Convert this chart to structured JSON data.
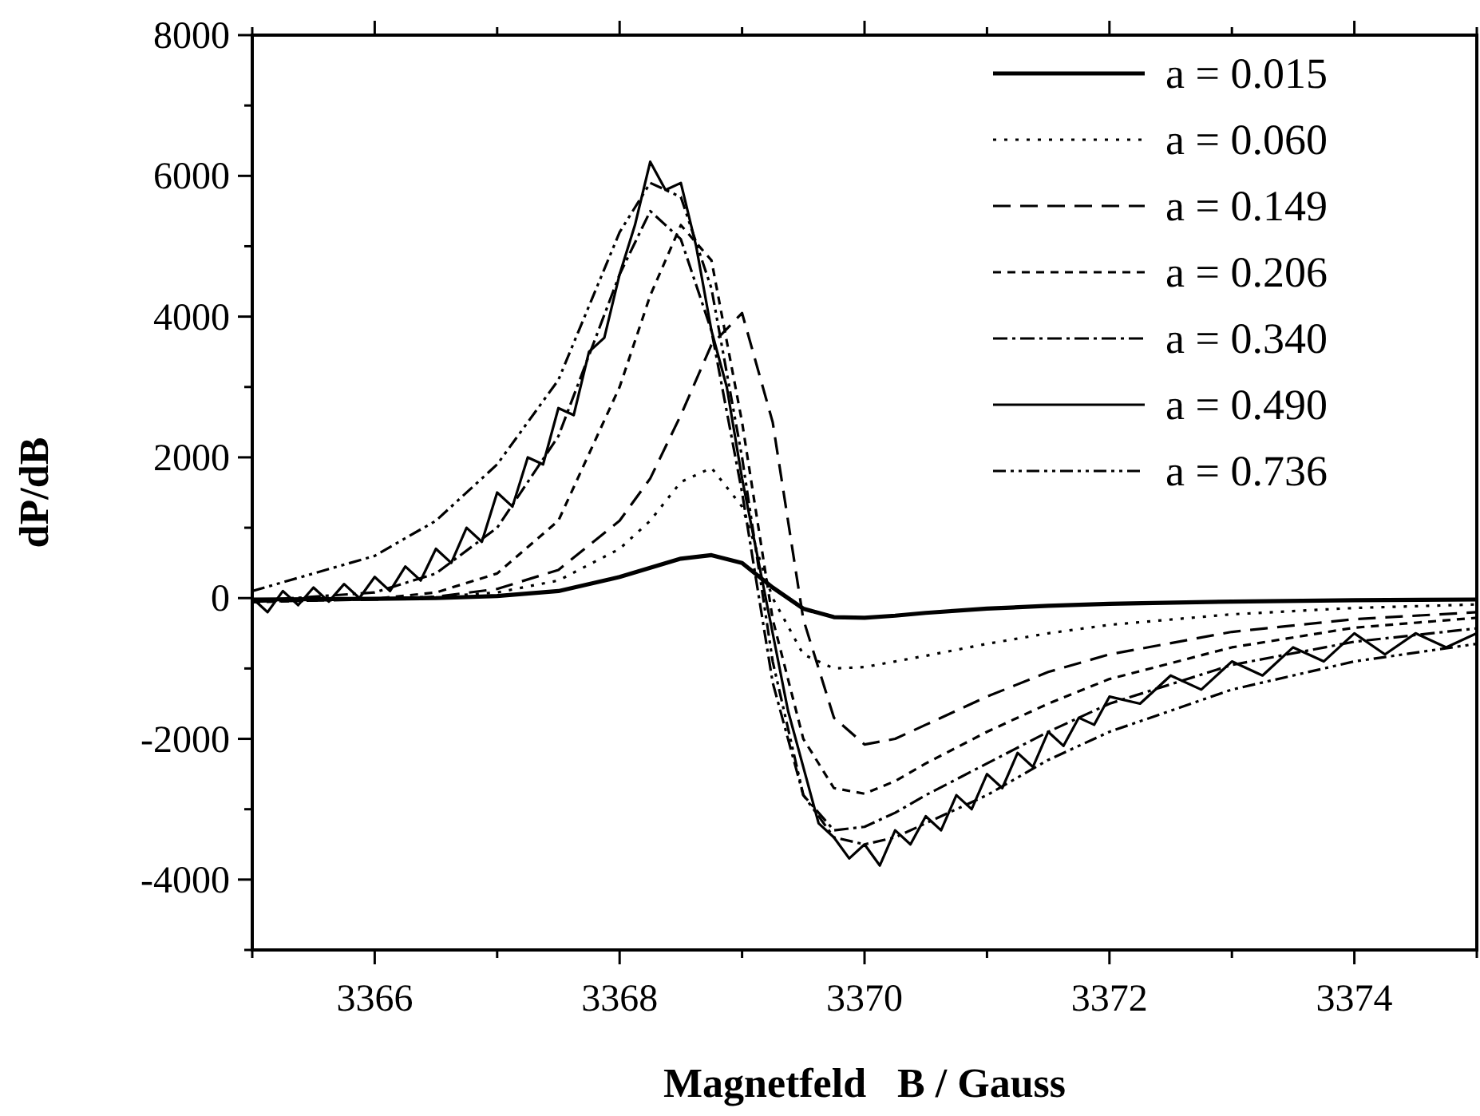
{
  "chart_data": {
    "type": "line",
    "xlabel": "Magnetfeld   B / Gauss",
    "ylabel": "dP/dB",
    "legend": "top right",
    "grid": false,
    "xlim": [
      3365,
      3375
    ],
    "ylim": [
      -5000,
      8000
    ],
    "xticks": [
      {
        "value": 3365,
        "label": null
      },
      3366,
      {
        "value": 3367,
        "label": null
      },
      3368,
      {
        "value": 3369,
        "label": null
      },
      3370,
      {
        "value": 3371,
        "label": null
      },
      3372,
      {
        "value": 3373,
        "label": null
      },
      3374,
      {
        "value": 3375,
        "label": null
      }
    ],
    "yticks": [
      {
        "value": -5000,
        "label": null
      },
      -4000,
      {
        "value": -3000,
        "label": null
      },
      -2000,
      {
        "value": -1000,
        "label": null
      },
      0,
      {
        "value": 1000,
        "label": null
      },
      2000,
      {
        "value": 3000,
        "label": null
      },
      4000,
      {
        "value": 5000,
        "label": null
      },
      6000,
      {
        "value": 7000,
        "label": null
      },
      8000
    ],
    "x": [
      3365,
      3366,
      3366.5,
      3367,
      3367.5,
      3368,
      3368.25,
      3368.5,
      3368.75,
      3369,
      3369.25,
      3369.5,
      3369.75,
      3370,
      3370.25,
      3370.5,
      3371,
      3371.5,
      3372,
      3373,
      3374,
      3375
    ],
    "series": [
      {
        "name": "a = 0.015",
        "color": "#000000",
        "line_style": "solid",
        "values": [
          -20,
          -10,
          0,
          30,
          100,
          300,
          430,
          560,
          610,
          500,
          150,
          -150,
          -270,
          -280,
          -250,
          -210,
          -150,
          -110,
          -80,
          -50,
          -30,
          -20
        ]
      },
      {
        "name": "a = 0.060",
        "color": "#000000",
        "line_style": "dotted",
        "values": [
          -30,
          -10,
          20,
          80,
          250,
          700,
          1100,
          1650,
          1850,
          1300,
          0,
          -800,
          -1000,
          -980,
          -900,
          -820,
          -650,
          -500,
          -380,
          -230,
          -140,
          -90
        ]
      },
      {
        "name": "a = 0.149",
        "color": "#000000",
        "line_style": "dashed",
        "values": [
          -50,
          -20,
          20,
          130,
          400,
          1100,
          1700,
          2600,
          3600,
          4050,
          2500,
          -300,
          -1700,
          -2080,
          -2000,
          -1800,
          -1400,
          -1050,
          -800,
          -480,
          -300,
          -200
        ]
      },
      {
        "name": "a = 0.206",
        "color": "#000000",
        "line_style": "shortdash",
        "values": [
          -60,
          -10,
          80,
          350,
          1100,
          3000,
          4300,
          5300,
          4800,
          2500,
          -300,
          -2000,
          -2700,
          -2780,
          -2600,
          -2350,
          -1900,
          -1500,
          -1150,
          -700,
          -420,
          -280
        ]
      },
      {
        "name": "a = 0.340",
        "color": "#000000",
        "line_style": "dashdot",
        "values": [
          -40,
          80,
          350,
          1000,
          2300,
          4600,
          5500,
          5100,
          3800,
          1500,
          -1200,
          -2800,
          -3300,
          -3250,
          -3050,
          -2800,
          -2350,
          -1900,
          -1500,
          -950,
          -620,
          -430
        ]
      },
      {
        "name": "a = 0.490",
        "color": "#000000",
        "line_style": "solid",
        "x": [
          3365,
          3365.125,
          3365.25,
          3365.375,
          3365.5,
          3365.625,
          3365.75,
          3365.875,
          3366,
          3366.125,
          3366.25,
          3366.375,
          3366.5,
          3366.625,
          3366.75,
          3366.875,
          3367,
          3367.125,
          3367.25,
          3367.375,
          3367.5,
          3367.625,
          3367.75,
          3367.875,
          3368,
          3368.125,
          3368.25,
          3368.375,
          3368.5,
          3368.625,
          3368.75,
          3368.875,
          3369,
          3369.125,
          3369.25,
          3369.375,
          3369.5,
          3369.625,
          3369.75,
          3369.875,
          3370,
          3370.125,
          3370.25,
          3370.375,
          3370.5,
          3370.625,
          3370.75,
          3370.875,
          3371,
          3371.125,
          3371.25,
          3371.375,
          3371.5,
          3371.625,
          3371.75,
          3371.875,
          3372,
          3372.25,
          3372.5,
          3372.75,
          3373,
          3373.25,
          3373.5,
          3373.75,
          3374,
          3374.25,
          3374.5,
          3374.75,
          3375
        ],
        "values": [
          0,
          -200,
          100,
          -100,
          150,
          -50,
          200,
          0,
          300,
          100,
          450,
          250,
          700,
          500,
          1000,
          800,
          1500,
          1300,
          2000,
          1900,
          2700,
          2600,
          3500,
          3700,
          4600,
          5300,
          6200,
          5800,
          5900,
          5000,
          3800,
          3000,
          1700,
          600,
          -500,
          -1600,
          -2400,
          -3200,
          -3400,
          -3700,
          -3500,
          -3800,
          -3300,
          -3500,
          -3100,
          -3300,
          -2800,
          -3000,
          -2500,
          -2700,
          -2200,
          -2400,
          -1900,
          -2100,
          -1700,
          -1800,
          -1400,
          -1500,
          -1100,
          -1300,
          -900,
          -1100,
          -700,
          -900,
          -500,
          -800,
          -500,
          -700,
          -500
        ]
      },
      {
        "name": "a = 0.736",
        "color": "#000000",
        "line_style": "dashdotdot",
        "values": [
          100,
          600,
          1100,
          1900,
          3100,
          5200,
          5900,
          5700,
          4400,
          2000,
          -900,
          -2800,
          -3400,
          -3500,
          -3400,
          -3200,
          -2800,
          -2300,
          -1900,
          -1300,
          -900,
          -650
        ]
      }
    ]
  }
}
